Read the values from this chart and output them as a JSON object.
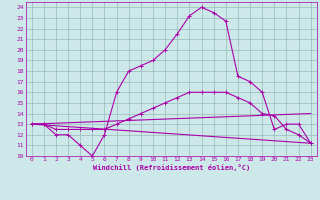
{
  "xlabel": "Windchill (Refroidissement éolien,°C)",
  "bg_color": "#cce8e8",
  "line_color": "#aa00aa",
  "grid_color": "#99bbbb",
  "xlim": [
    -0.5,
    23.5
  ],
  "ylim": [
    10,
    24.5
  ],
  "xticks": [
    0,
    1,
    2,
    3,
    4,
    5,
    6,
    7,
    8,
    9,
    10,
    11,
    12,
    13,
    14,
    15,
    16,
    17,
    18,
    19,
    20,
    21,
    22,
    23
  ],
  "yticks": [
    10,
    11,
    12,
    13,
    14,
    15,
    16,
    17,
    18,
    19,
    20,
    21,
    22,
    23,
    24
  ],
  "curve1_x": [
    0,
    1,
    2,
    3,
    4,
    5,
    6,
    7,
    8,
    9,
    10,
    11,
    12,
    13,
    14,
    15,
    16,
    17,
    18,
    19,
    20,
    21,
    22,
    23
  ],
  "curve1_y": [
    13,
    13,
    12,
    12,
    11,
    10,
    12,
    16,
    18,
    18.5,
    19,
    20,
    21.5,
    23.2,
    24,
    23.5,
    22.7,
    17.5,
    17,
    16,
    12.5,
    13,
    13,
    11.2
  ],
  "curve2_x": [
    0,
    1,
    2,
    3,
    4,
    5,
    6,
    7,
    8,
    9,
    10,
    11,
    12,
    13,
    14,
    15,
    16,
    17,
    18,
    19,
    20,
    21,
    22,
    23
  ],
  "curve2_y": [
    13,
    13,
    12.5,
    12.5,
    12.5,
    12.5,
    12.5,
    13,
    13.5,
    14,
    14.5,
    15,
    15.5,
    16,
    16,
    16,
    16,
    15.5,
    15,
    14,
    13.8,
    12.5,
    12,
    11.2
  ],
  "curve3_x": [
    0,
    23
  ],
  "curve3_y": [
    13,
    11.2
  ],
  "curve4_x": [
    0,
    23
  ],
  "curve4_y": [
    13,
    14.0
  ]
}
